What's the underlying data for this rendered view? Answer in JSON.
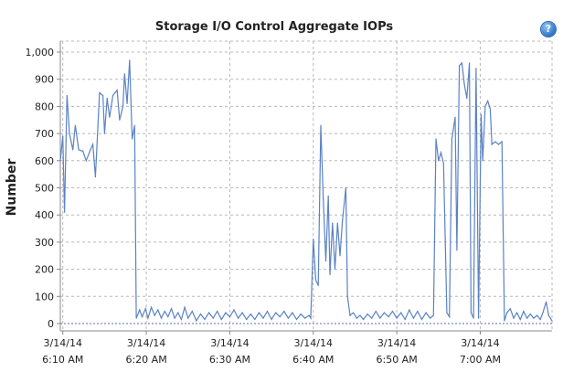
{
  "chart_data": {
    "type": "line",
    "title": "Storage I/O Control Aggregate IOPs",
    "ylabel": "Number",
    "xlabel": "",
    "ylim": [
      0,
      1000
    ],
    "yticks": [
      "0",
      "100",
      "200",
      "300",
      "400",
      "500",
      "600",
      "700",
      "800",
      "900",
      "1,000"
    ],
    "ytick_values": [
      0,
      100,
      200,
      300,
      400,
      500,
      600,
      700,
      800,
      900,
      1000
    ],
    "xticks": [
      {
        "date": "3/14/14",
        "time": "6:10 AM",
        "minute": 10
      },
      {
        "date": "3/14/14",
        "time": "6:20 AM",
        "minute": 20
      },
      {
        "date": "3/14/14",
        "time": "6:30 AM",
        "minute": 30
      },
      {
        "date": "3/14/14",
        "time": "6:40 AM",
        "minute": 40
      },
      {
        "date": "3/14/14",
        "time": "6:50 AM",
        "minute": 50
      },
      {
        "date": "3/14/14",
        "time": "7:00 AM",
        "minute": 60
      }
    ],
    "xlim_minutes": [
      9.7,
      68.6
    ],
    "grid": true,
    "series": [
      {
        "color": "#5a82c4",
        "points": [
          [
            9.7,
            600
          ],
          [
            10.0,
            690
          ],
          [
            10.2,
            410
          ],
          [
            10.5,
            840
          ],
          [
            10.8,
            700
          ],
          [
            11.2,
            640
          ],
          [
            11.5,
            730
          ],
          [
            11.9,
            640
          ],
          [
            12.4,
            635
          ],
          [
            12.8,
            600
          ],
          [
            13.3,
            640
          ],
          [
            13.6,
            660
          ],
          [
            13.9,
            540
          ],
          [
            14.4,
            850
          ],
          [
            14.8,
            840
          ],
          [
            15.0,
            700
          ],
          [
            15.3,
            830
          ],
          [
            15.6,
            760
          ],
          [
            16.0,
            840
          ],
          [
            16.5,
            860
          ],
          [
            16.8,
            750
          ],
          [
            17.2,
            800
          ],
          [
            17.4,
            920
          ],
          [
            17.7,
            810
          ],
          [
            18.0,
            970
          ],
          [
            18.3,
            680
          ],
          [
            18.6,
            730
          ],
          [
            18.8,
            20
          ],
          [
            19.2,
            50
          ],
          [
            19.5,
            25
          ],
          [
            19.9,
            55
          ],
          [
            20.2,
            20
          ],
          [
            20.6,
            60
          ],
          [
            21.0,
            30
          ],
          [
            21.4,
            50
          ],
          [
            21.8,
            20
          ],
          [
            22.2,
            45
          ],
          [
            22.6,
            25
          ],
          [
            23.0,
            55
          ],
          [
            23.4,
            20
          ],
          [
            23.8,
            40
          ],
          [
            24.2,
            15
          ],
          [
            24.6,
            60
          ],
          [
            25.0,
            20
          ],
          [
            25.5,
            45
          ],
          [
            26.0,
            10
          ],
          [
            26.5,
            35
          ],
          [
            27.0,
            15
          ],
          [
            27.5,
            40
          ],
          [
            28.0,
            20
          ],
          [
            28.5,
            45
          ],
          [
            29.0,
            15
          ],
          [
            29.5,
            40
          ],
          [
            30.0,
            25
          ],
          [
            30.5,
            50
          ],
          [
            31.0,
            20
          ],
          [
            31.5,
            40
          ],
          [
            32.0,
            15
          ],
          [
            32.5,
            35
          ],
          [
            33.0,
            15
          ],
          [
            33.5,
            40
          ],
          [
            34.0,
            20
          ],
          [
            34.5,
            45
          ],
          [
            35.0,
            15
          ],
          [
            35.5,
            40
          ],
          [
            36.0,
            25
          ],
          [
            36.5,
            45
          ],
          [
            37.0,
            20
          ],
          [
            37.5,
            40
          ],
          [
            38.0,
            15
          ],
          [
            38.5,
            35
          ],
          [
            39.0,
            20
          ],
          [
            39.5,
            30
          ],
          [
            39.7,
            20
          ],
          [
            40.0,
            310
          ],
          [
            40.3,
            160
          ],
          [
            40.6,
            140
          ],
          [
            40.9,
            730
          ],
          [
            41.2,
            460
          ],
          [
            41.5,
            230
          ],
          [
            41.8,
            470
          ],
          [
            42.0,
            180
          ],
          [
            42.3,
            370
          ],
          [
            42.6,
            200
          ],
          [
            42.9,
            370
          ],
          [
            43.2,
            250
          ],
          [
            43.5,
            380
          ],
          [
            43.9,
            500
          ],
          [
            44.1,
            100
          ],
          [
            44.4,
            30
          ],
          [
            44.8,
            40
          ],
          [
            45.2,
            20
          ],
          [
            45.6,
            30
          ],
          [
            46.0,
            15
          ],
          [
            46.5,
            35
          ],
          [
            47.0,
            20
          ],
          [
            47.5,
            45
          ],
          [
            48.0,
            20
          ],
          [
            48.5,
            40
          ],
          [
            49.0,
            25
          ],
          [
            49.5,
            45
          ],
          [
            50.0,
            20
          ],
          [
            50.5,
            40
          ],
          [
            51.0,
            15
          ],
          [
            51.5,
            50
          ],
          [
            52.0,
            20
          ],
          [
            52.5,
            45
          ],
          [
            53.0,
            15
          ],
          [
            53.5,
            40
          ],
          [
            54.0,
            20
          ],
          [
            54.4,
            30
          ],
          [
            54.7,
            680
          ],
          [
            55.0,
            600
          ],
          [
            55.3,
            630
          ],
          [
            55.6,
            590
          ],
          [
            56.0,
            40
          ],
          [
            56.3,
            25
          ],
          [
            56.6,
            680
          ],
          [
            57.0,
            760
          ],
          [
            57.2,
            270
          ],
          [
            57.5,
            950
          ],
          [
            57.8,
            960
          ],
          [
            58.1,
            880
          ],
          [
            58.4,
            830
          ],
          [
            58.7,
            960
          ],
          [
            58.9,
            40
          ],
          [
            59.2,
            20
          ],
          [
            59.5,
            940
          ],
          [
            59.8,
            20
          ],
          [
            60.1,
            770
          ],
          [
            60.3,
            600
          ],
          [
            60.6,
            800
          ],
          [
            60.9,
            820
          ],
          [
            61.2,
            790
          ],
          [
            61.4,
            660
          ],
          [
            61.8,
            670
          ],
          [
            62.2,
            660
          ],
          [
            62.6,
            670
          ],
          [
            62.9,
            10
          ],
          [
            63.2,
            40
          ],
          [
            63.6,
            55
          ],
          [
            64.0,
            20
          ],
          [
            64.4,
            40
          ],
          [
            64.8,
            15
          ],
          [
            65.2,
            45
          ],
          [
            65.6,
            20
          ],
          [
            66.0,
            35
          ],
          [
            66.4,
            20
          ],
          [
            66.8,
            30
          ],
          [
            67.2,
            15
          ],
          [
            67.5,
            40
          ],
          [
            67.9,
            80
          ],
          [
            68.2,
            30
          ],
          [
            68.6,
            10
          ]
        ]
      }
    ]
  },
  "help_icon": "help-icon"
}
